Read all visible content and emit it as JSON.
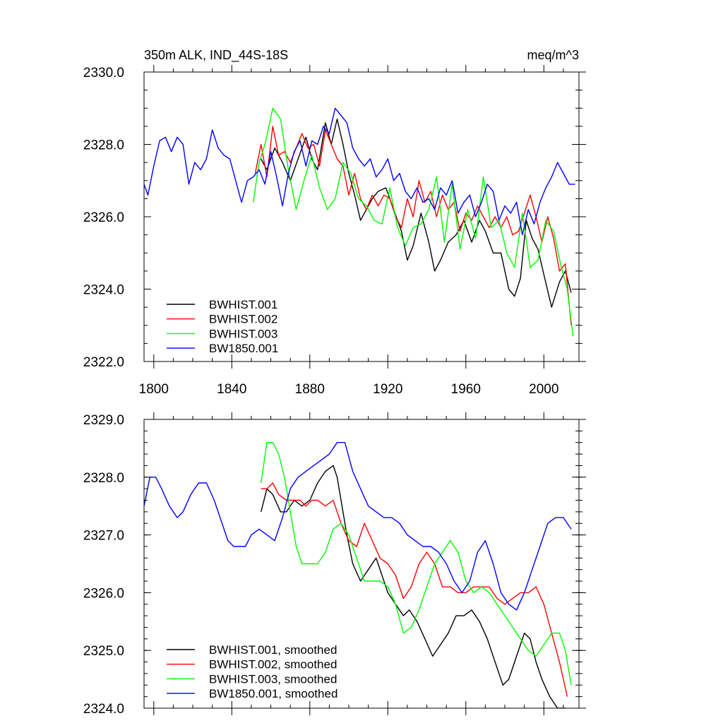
{
  "chart_data": [
    {
      "type": "line",
      "title": "350m ALK, IND_44S-18S",
      "units": "meq/m^3",
      "xlabel": "",
      "ylabel": "",
      "xlim": [
        1795,
        2018
      ],
      "ylim": [
        2322,
        2330
      ],
      "xticks": [
        1800,
        1840,
        1880,
        1920,
        1960,
        2000
      ],
      "yticks": [
        2322,
        2324,
        2326,
        2328,
        2330
      ],
      "ytick_labels": [
        "2322.0",
        "2324.0",
        "2326.0",
        "2328.0",
        "2330.0"
      ],
      "legend_position": "bottom-left",
      "series": [
        {
          "name": "BWHIST.001",
          "color": "#000000",
          "x": [
            1855,
            1858,
            1862,
            1866,
            1870,
            1874,
            1878,
            1881,
            1884,
            1888,
            1891,
            1894,
            1897,
            1900,
            1903,
            1906,
            1909,
            1912,
            1915,
            1919,
            1923,
            1927,
            1930,
            1933,
            1937,
            1941,
            1944,
            1947,
            1951,
            1955,
            1959,
            1963,
            1967,
            1970,
            1974,
            1978,
            1982,
            1985,
            1988,
            1991,
            1994,
            1997,
            2000,
            2004,
            2008,
            2011,
            2014
          ],
          "values": [
            2327.6,
            2327.3,
            2327.9,
            2327.5,
            2327.0,
            2327.6,
            2328.2,
            2327.6,
            2327.3,
            2328.6,
            2328.0,
            2328.7,
            2328.0,
            2327.2,
            2326.6,
            2325.9,
            2326.2,
            2326.5,
            2326.7,
            2326.8,
            2326.2,
            2325.6,
            2324.8,
            2325.2,
            2326.1,
            2325.3,
            2324.5,
            2324.8,
            2325.3,
            2325.5,
            2325.9,
            2325.3,
            2325.9,
            2325.6,
            2325.0,
            2325.0,
            2324.0,
            2323.8,
            2324.3,
            2325.9,
            2325.4,
            2325.1,
            2324.4,
            2323.5,
            2324.2,
            2324.5,
            2323.9
          ]
        },
        {
          "name": "BWHIST.002",
          "color": "#ff0000",
          "x": [
            1852,
            1855,
            1858,
            1861,
            1864,
            1867,
            1870,
            1873,
            1876,
            1879,
            1882,
            1885,
            1888,
            1891,
            1894,
            1897,
            1900,
            1903,
            1906,
            1909,
            1912,
            1915,
            1918,
            1921,
            1924,
            1927,
            1930,
            1933,
            1936,
            1939,
            1942,
            1945,
            1948,
            1951,
            1954,
            1957,
            1960,
            1963,
            1966,
            1969,
            1972,
            1975,
            1978,
            1981,
            1984,
            1987,
            1990,
            1993,
            1996,
            1999,
            2002,
            2005,
            2008,
            2011,
            2014
          ],
          "values": [
            2327.2,
            2328.0,
            2327.1,
            2328.5,
            2327.7,
            2327.8,
            2327.5,
            2327.9,
            2328.3,
            2327.9,
            2328.0,
            2327.4,
            2328.4,
            2328.0,
            2327.6,
            2327.4,
            2326.6,
            2327.2,
            2326.5,
            2326.2,
            2326.6,
            2326.3,
            2326.6,
            2326.5,
            2326.0,
            2325.7,
            2326.5,
            2326.0,
            2327.0,
            2326.4,
            2326.7,
            2326.0,
            2326.6,
            2326.2,
            2326.4,
            2325.6,
            2326.1,
            2325.9,
            2326.3,
            2326.0,
            2325.7,
            2326.0,
            2325.7,
            2326.0,
            2325.5,
            2325.6,
            2326.1,
            2326.6,
            2326.0,
            2325.3,
            2326.0,
            2325.4,
            2324.5,
            2324.7,
            2323.0
          ]
        },
        {
          "name": "BWHIST.003",
          "color": "#00ff00",
          "x": [
            1851,
            1854,
            1857,
            1861,
            1865,
            1869,
            1873,
            1877,
            1881,
            1885,
            1889,
            1893,
            1897,
            1901,
            1905,
            1909,
            1913,
            1917,
            1921,
            1925,
            1929,
            1933,
            1937,
            1941,
            1945,
            1949,
            1953,
            1957,
            1961,
            1965,
            1969,
            1973,
            1977,
            1981,
            1985,
            1989,
            1993,
            1997,
            2001,
            2005,
            2009,
            2012,
            2015
          ],
          "values": [
            2326.4,
            2327.5,
            2328.0,
            2329.0,
            2328.7,
            2327.3,
            2326.2,
            2327.0,
            2327.7,
            2326.8,
            2326.2,
            2326.5,
            2327.5,
            2327.2,
            2326.5,
            2326.3,
            2325.9,
            2325.8,
            2326.8,
            2325.7,
            2325.2,
            2325.7,
            2325.8,
            2326.2,
            2327.1,
            2325.3,
            2326.9,
            2325.1,
            2326.2,
            2325.4,
            2327.1,
            2325.7,
            2325.9,
            2325.0,
            2324.6,
            2326.1,
            2324.6,
            2324.8,
            2325.9,
            2325.6,
            2324.6,
            2324.0,
            2322.7
          ]
        },
        {
          "name": "BW1850.001",
          "color": "#0000ff",
          "x": [
            1795,
            1797,
            1800,
            1803,
            1806,
            1809,
            1812,
            1815,
            1818,
            1821,
            1824,
            1827,
            1830,
            1833,
            1836,
            1839,
            1842,
            1845,
            1848,
            1851,
            1854,
            1857,
            1860,
            1863,
            1866,
            1869,
            1872,
            1875,
            1878,
            1881,
            1884,
            1887,
            1890,
            1893,
            1896,
            1899,
            1902,
            1905,
            1908,
            1911,
            1914,
            1917,
            1920,
            1923,
            1926,
            1929,
            1932,
            1935,
            1938,
            1941,
            1944,
            1947,
            1950,
            1953,
            1956,
            1959,
            1962,
            1965,
            1968,
            1971,
            1974,
            1977,
            1980,
            1983,
            1986,
            1989,
            1992,
            1995,
            1998,
            2001,
            2004,
            2007,
            2010,
            2013,
            2016
          ],
          "values": [
            2326.9,
            2326.6,
            2327.4,
            2328.1,
            2328.2,
            2327.8,
            2328.2,
            2328.0,
            2326.9,
            2327.5,
            2327.3,
            2327.6,
            2328.4,
            2327.9,
            2327.7,
            2327.6,
            2327.0,
            2326.4,
            2327.0,
            2327.1,
            2327.3,
            2326.9,
            2327.8,
            2327.1,
            2326.3,
            2327.2,
            2327.8,
            2328.1,
            2327.4,
            2328.1,
            2328.0,
            2328.5,
            2328.3,
            2329.0,
            2328.8,
            2328.6,
            2327.9,
            2327.6,
            2327.4,
            2327.6,
            2327.1,
            2327.3,
            2327.6,
            2327.0,
            2327.2,
            2326.7,
            2326.5,
            2326.8,
            2326.4,
            2326.5,
            2326.2,
            2326.8,
            2326.6,
            2327.0,
            2326.1,
            2326.4,
            2326.6,
            2326.0,
            2326.4,
            2326.9,
            2326.7,
            2325.9,
            2326.3,
            2326.1,
            2326.4,
            2325.5,
            2326.2,
            2325.8,
            2326.4,
            2326.8,
            2327.1,
            2327.5,
            2327.2,
            2326.9,
            2326.9
          ]
        }
      ]
    },
    {
      "type": "line",
      "title": "",
      "xlabel": "",
      "ylabel": "",
      "xlim": [
        1795,
        2018
      ],
      "ylim": [
        2324,
        2329
      ],
      "xticks": [
        1800,
        1840,
        1880,
        1920,
        1960,
        2000
      ],
      "yticks": [
        2324,
        2325,
        2326,
        2327,
        2328,
        2329
      ],
      "ytick_labels": [
        "2324.0",
        "2325.0",
        "2326.0",
        "2327.0",
        "2328.0",
        "2329.0"
      ],
      "legend_position": "bottom-left",
      "series": [
        {
          "name": "BWHIST.001, smoothed",
          "color": "#000000",
          "x": [
            1855,
            1858,
            1861,
            1865,
            1868,
            1872,
            1876,
            1880,
            1884,
            1888,
            1892,
            1894,
            1896,
            1899,
            1902,
            1906,
            1910,
            1914,
            1917,
            1920,
            1924,
            1928,
            1931,
            1935,
            1939,
            1943,
            1947,
            1951,
            1955,
            1959,
            1963,
            1967,
            1971,
            1975,
            1979,
            1982,
            1986,
            1990,
            1993,
            1996,
            1999,
            2003,
            2007,
            2011
          ],
          "values": [
            2327.4,
            2327.8,
            2327.7,
            2327.4,
            2327.4,
            2327.6,
            2327.5,
            2327.6,
            2327.9,
            2328.1,
            2328.2,
            2328.0,
            2327.6,
            2327.0,
            2326.5,
            2326.2,
            2326.4,
            2326.6,
            2326.3,
            2326.0,
            2325.8,
            2325.6,
            2325.7,
            2325.5,
            2325.2,
            2324.9,
            2325.1,
            2325.3,
            2325.6,
            2325.6,
            2325.7,
            2325.5,
            2325.2,
            2324.8,
            2324.4,
            2324.5,
            2324.9,
            2325.3,
            2325.2,
            2324.8,
            2324.5,
            2324.2,
            2324.0,
            2324.0
          ]
        },
        {
          "name": "BWHIST.002, smoothed",
          "color": "#ff0000",
          "x": [
            1855,
            1858,
            1861,
            1864,
            1868,
            1872,
            1875,
            1878,
            1881,
            1884,
            1888,
            1892,
            1896,
            1900,
            1904,
            1908,
            1912,
            1916,
            1920,
            1924,
            1928,
            1932,
            1936,
            1940,
            1944,
            1948,
            1952,
            1956,
            1960,
            1964,
            1968,
            1972,
            1976,
            1980,
            1984,
            1988,
            1992,
            1996,
            2000,
            2004,
            2008,
            2012
          ],
          "values": [
            2327.8,
            2327.8,
            2327.9,
            2327.7,
            2327.6,
            2327.6,
            2327.6,
            2327.5,
            2327.6,
            2327.6,
            2327.5,
            2327.6,
            2327.2,
            2326.9,
            2326.8,
            2327.2,
            2326.9,
            2326.6,
            2326.5,
            2326.3,
            2325.9,
            2326.1,
            2326.5,
            2326.7,
            2326.5,
            2326.1,
            2326.1,
            2326.0,
            2326.0,
            2326.1,
            2326.1,
            2326.1,
            2325.9,
            2325.8,
            2325.9,
            2326.0,
            2326.0,
            2326.1,
            2325.8,
            2325.3,
            2324.8,
            2324.2
          ]
        },
        {
          "name": "BWHIST.003, smoothed",
          "color": "#00ff00",
          "x": [
            1855,
            1858,
            1861,
            1864,
            1867,
            1870,
            1873,
            1876,
            1880,
            1884,
            1888,
            1892,
            1896,
            1900,
            1904,
            1908,
            1912,
            1916,
            1920,
            1924,
            1928,
            1932,
            1936,
            1940,
            1944,
            1948,
            1952,
            1956,
            1960,
            1964,
            1968,
            1972,
            1976,
            1980,
            1984,
            1988,
            1992,
            1996,
            2000,
            2004,
            2008,
            2011,
            2014
          ],
          "values": [
            2327.9,
            2328.6,
            2328.6,
            2328.4,
            2328.0,
            2327.4,
            2326.8,
            2326.5,
            2326.5,
            2326.5,
            2326.7,
            2327.1,
            2327.2,
            2327.0,
            2326.6,
            2326.2,
            2326.2,
            2326.2,
            2326.1,
            2325.8,
            2325.3,
            2325.4,
            2325.7,
            2326.1,
            2326.5,
            2326.7,
            2326.9,
            2326.7,
            2326.2,
            2326.0,
            2326.1,
            2326.0,
            2325.8,
            2325.6,
            2325.4,
            2325.2,
            2325.0,
            2324.9,
            2325.1,
            2325.3,
            2325.3,
            2325.0,
            2324.4
          ]
        },
        {
          "name": "BW1850.001, smoothed",
          "color": "#0000ff",
          "x": [
            1795,
            1798,
            1801,
            1804,
            1808,
            1812,
            1815,
            1819,
            1823,
            1827,
            1831,
            1835,
            1838,
            1841,
            1844,
            1847,
            1850,
            1854,
            1858,
            1862,
            1866,
            1870,
            1874,
            1878,
            1882,
            1886,
            1890,
            1894,
            1898,
            1902,
            1906,
            1910,
            1914,
            1918,
            1922,
            1926,
            1930,
            1934,
            1938,
            1942,
            1946,
            1950,
            1954,
            1958,
            1962,
            1966,
            1970,
            1974,
            1978,
            1982,
            1986,
            1990,
            1994,
            1998,
            2002,
            2006,
            2010,
            2014
          ],
          "values": [
            2327.5,
            2328.0,
            2328.0,
            2327.8,
            2327.5,
            2327.3,
            2327.4,
            2327.7,
            2327.9,
            2327.9,
            2327.6,
            2327.2,
            2326.9,
            2326.8,
            2326.8,
            2326.8,
            2327.0,
            2327.1,
            2327.0,
            2326.9,
            2327.3,
            2327.8,
            2328.0,
            2328.1,
            2328.2,
            2328.3,
            2328.4,
            2328.6,
            2328.6,
            2328.1,
            2327.8,
            2327.5,
            2327.4,
            2327.3,
            2327.3,
            2327.2,
            2327.0,
            2326.9,
            2326.8,
            2326.8,
            2326.7,
            2326.5,
            2326.2,
            2326.0,
            2326.2,
            2326.7,
            2326.9,
            2326.5,
            2326.0,
            2325.8,
            2325.7,
            2326.0,
            2326.4,
            2326.8,
            2327.2,
            2327.3,
            2327.3,
            2327.1
          ]
        }
      ]
    }
  ]
}
